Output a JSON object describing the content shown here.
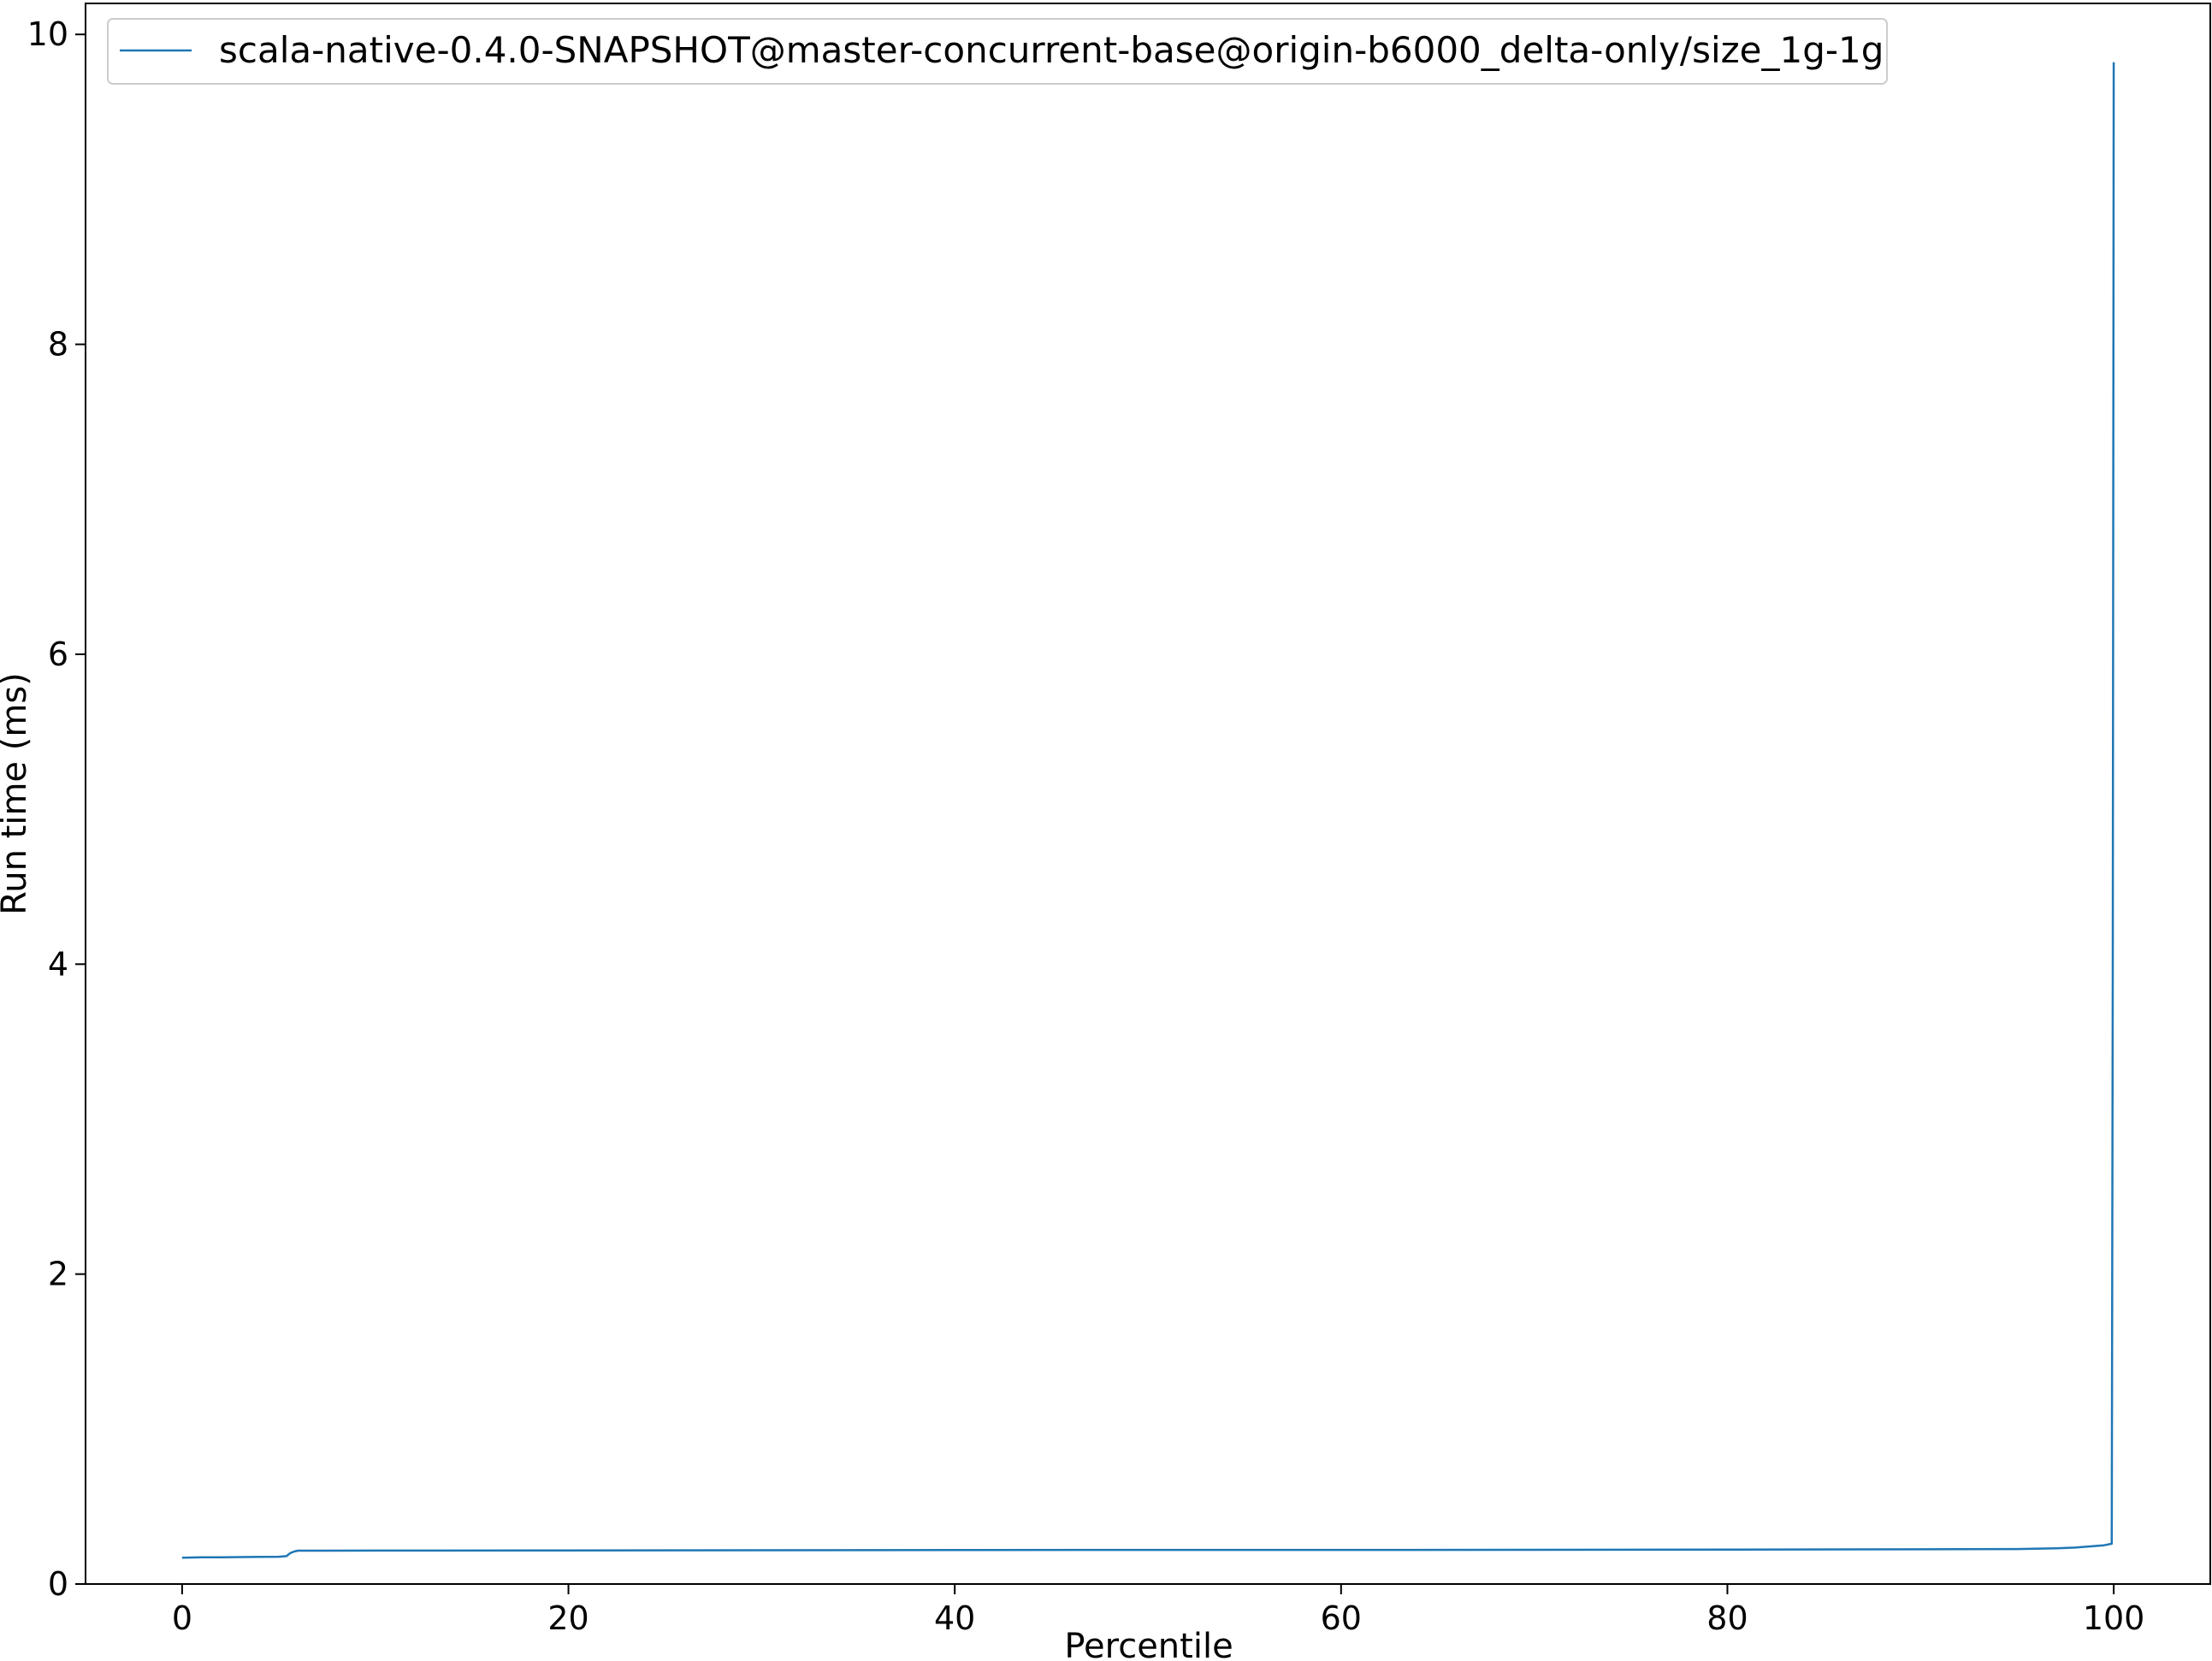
{
  "chart_data": {
    "type": "line",
    "xlabel": "Percentile",
    "ylabel": "Run time (ms)",
    "xlim": [
      -5,
      105
    ],
    "ylim": [
      0,
      10.2
    ],
    "xticks": [
      0,
      20,
      40,
      60,
      80,
      100
    ],
    "yticks": [
      0,
      2,
      4,
      6,
      8,
      10
    ],
    "grid": false,
    "legend_position": "top-left",
    "series": [
      {
        "name": "scala-native-0.4.0-SNAPSHOT@master-concurrent-base@origin-b6000_delta-only/size_1g-1g",
        "color": "#1f77b4",
        "x": [
          0,
          1,
          2,
          3,
          4,
          5,
          5.4,
          5.6,
          5.8,
          6,
          7,
          10,
          20,
          30,
          40,
          50,
          60,
          70,
          80,
          90,
          95,
          97,
          98,
          99,
          99.5,
          99.9,
          99.95,
          100
        ],
        "y": [
          0.17,
          0.172,
          0.173,
          0.174,
          0.175,
          0.176,
          0.18,
          0.2,
          0.21,
          0.215,
          0.215,
          0.216,
          0.217,
          0.218,
          0.219,
          0.22,
          0.22,
          0.221,
          0.222,
          0.224,
          0.226,
          0.23,
          0.235,
          0.245,
          0.25,
          0.26,
          4.0,
          9.82
        ]
      }
    ]
  }
}
